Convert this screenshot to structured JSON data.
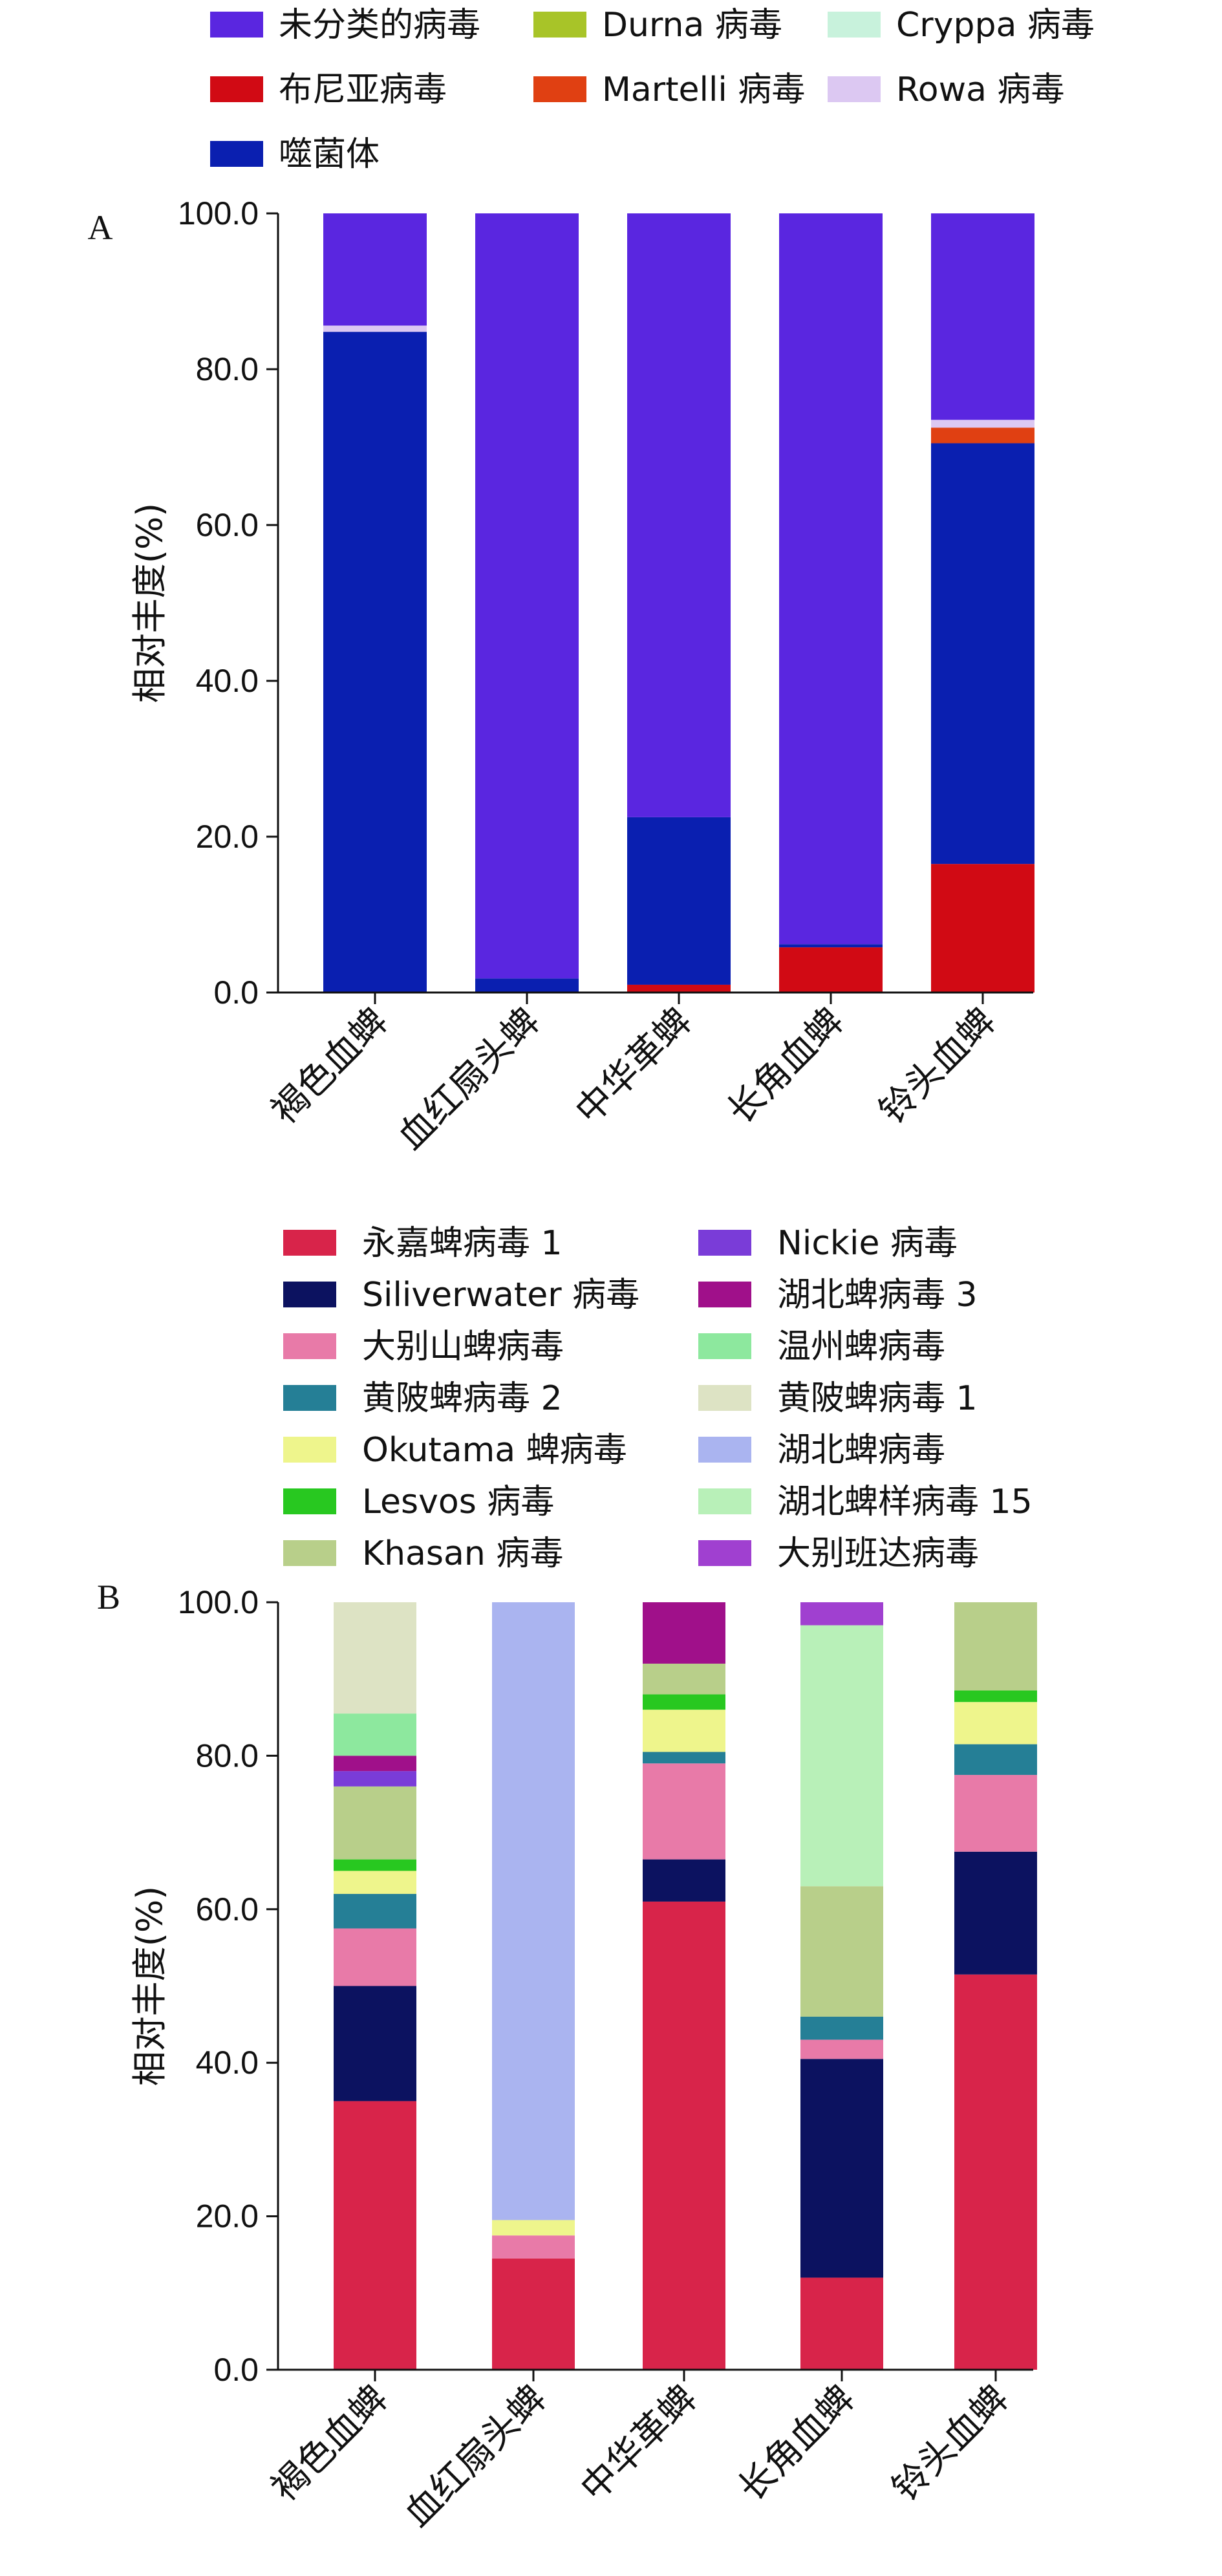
{
  "chart_data": [
    {
      "type": "bar",
      "stacked": true,
      "panel_label": "A",
      "ylabel": "相对丰度(%)",
      "ylim": [
        0,
        100
      ],
      "yticks": [
        "0.0",
        "20.0",
        "40.0",
        "60.0",
        "80.0",
        "100.0"
      ],
      "categories": [
        "褐色血蜱",
        "血红扇头蜱",
        "中华革蜱",
        "长角血蜱",
        "铃头血蜱"
      ],
      "series": [
        {
          "name": "布尼亚病毒",
          "color": "#d10a14",
          "values": [
            0,
            0,
            1,
            5.8,
            16.5
          ]
        },
        {
          "name": "噬菌体",
          "color": "#0a1fb0",
          "values": [
            84.8,
            1.8,
            21.5,
            0.4,
            54
          ]
        },
        {
          "name": "Martelli 病毒",
          "color": "#e04012",
          "values": [
            0,
            0,
            0,
            0,
            2
          ]
        },
        {
          "name": "Rowa 病毒",
          "color": "#dcc8f2",
          "values": [
            0.8,
            0,
            0,
            0,
            1
          ]
        },
        {
          "name": "Durna 病毒",
          "color": "#a8c428",
          "values": [
            0,
            0,
            0,
            0,
            0
          ]
        },
        {
          "name": "Cryppa 病毒",
          "color": "#c8f2dc",
          "values": [
            0,
            0,
            0,
            0,
            0
          ]
        },
        {
          "name": "未分类的病毒",
          "color": "#5a26e0",
          "values": [
            14.4,
            98.2,
            77.5,
            93.8,
            26.5
          ]
        }
      ],
      "legend": {
        "items": [
          "未分类的病毒",
          "Durna 病毒",
          "Cryppa 病毒",
          "布尼亚病毒",
          "Martelli 病毒",
          "Rowa 病毒",
          "噬菌体"
        ],
        "placement": "top"
      }
    },
    {
      "type": "bar",
      "stacked": true,
      "panel_label": "B",
      "ylabel": "相对丰度(%)",
      "ylim": [
        0,
        100
      ],
      "yticks": [
        "0.0",
        "20.0",
        "40.0",
        "60.0",
        "80.0",
        "100.0"
      ],
      "categories": [
        "褐色血蜱",
        "血红扇头蜱",
        "中华革蜱",
        "长角血蜱",
        "铃头血蜱"
      ],
      "series": [
        {
          "name": "永嘉蜱病毒 1",
          "color": "#d8244a",
          "values": [
            35,
            14.5,
            61,
            12,
            51.5
          ]
        },
        {
          "name": "Siliverwater 病毒",
          "color": "#0c1260",
          "values": [
            15,
            0,
            5.5,
            28.5,
            16
          ]
        },
        {
          "name": "大别山蜱病毒",
          "color": "#e87aa8",
          "values": [
            7.5,
            3,
            12.5,
            2.5,
            10
          ]
        },
        {
          "name": "黄陂蜱病毒 2",
          "color": "#257f96",
          "values": [
            4.5,
            0,
            1.5,
            3,
            4
          ]
        },
        {
          "name": "Okutama 蜱病毒",
          "color": "#eef58c",
          "values": [
            3,
            2,
            5.5,
            0,
            5.5
          ]
        },
        {
          "name": "Lesvos 病毒",
          "color": "#28c820",
          "values": [
            1.5,
            0,
            2,
            0,
            1.5
          ]
        },
        {
          "name": "Khasan 病毒",
          "color": "#b8cf8a",
          "values": [
            9.5,
            0,
            4,
            17,
            11.5
          ]
        },
        {
          "name": "Nickie 病毒",
          "color": "#7a3cd8",
          "values": [
            2,
            0,
            0,
            0,
            0
          ]
        },
        {
          "name": "湖北蜱病毒 3",
          "color": "#a0108a",
          "values": [
            2,
            0,
            8,
            0,
            0
          ]
        },
        {
          "name": "温州蜱病毒",
          "color": "#8de89e",
          "values": [
            5.5,
            0,
            0,
            0,
            0
          ]
        },
        {
          "name": "黄陂蜱病毒 1",
          "color": "#dde3c4",
          "values": [
            14.5,
            0,
            0,
            0,
            0
          ]
        },
        {
          "name": "湖北蜱病毒",
          "color": "#aab4f0",
          "values": [
            0,
            80.5,
            0,
            0,
            0
          ]
        },
        {
          "name": "湖北蜱样病毒 15",
          "color": "#b8f0b8",
          "values": [
            0,
            0,
            0,
            34,
            0
          ]
        },
        {
          "name": "大别班达病毒",
          "color": "#a040d0",
          "values": [
            0,
            0,
            0,
            3,
            0
          ]
        }
      ],
      "legend": {
        "items": [
          "永嘉蜱病毒 1",
          "Nickie 病毒",
          "Siliverwater 病毒",
          "湖北蜱病毒 3",
          "大别山蜱病毒",
          "温州蜱病毒",
          "黄陂蜱病毒 2",
          "黄陂蜱病毒 1",
          "Okutama 蜱病毒",
          "湖北蜱病毒",
          "Lesvos 病毒",
          "湖北蜱样病毒 15",
          "Khasan 病毒",
          "大别班达病毒"
        ],
        "placement": "top"
      }
    }
  ]
}
